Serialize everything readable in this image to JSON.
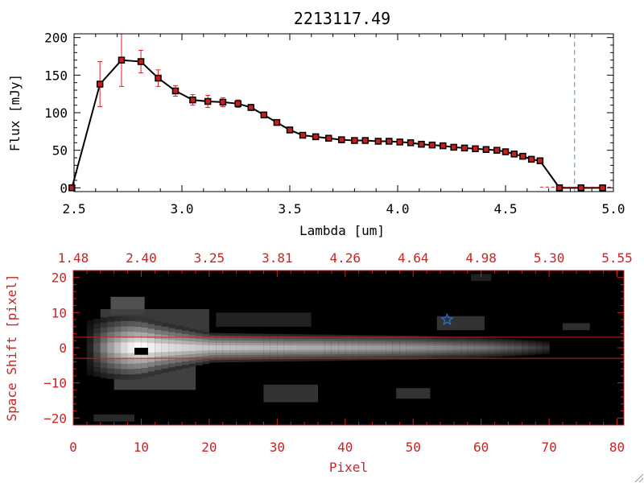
{
  "colors": {
    "background": "#ffffff",
    "axis_black": "#000000",
    "axis_red": "#cc2222",
    "errorbar_red": "#dd2222",
    "marker_fill": "#c81e1e",
    "line_black": "#000000",
    "dashed_blue": "#3a9ad9",
    "star_blue": "#2f7de0",
    "image_black": "#000000"
  },
  "chart_data": [
    {
      "type": "line",
      "title": "2213117.49",
      "xlabel": "Lambda [um]",
      "ylabel": "Flux [mJy]",
      "xlim": [
        2.5,
        5.0
      ],
      "ylim": [
        -5,
        205
      ],
      "xticks": [
        2.5,
        3.0,
        3.5,
        4.0,
        4.5,
        5.0
      ],
      "xtick_labels": [
        "2.5",
        "3.0",
        "3.5",
        "4.0",
        "4.5",
        "5.0"
      ],
      "yticks": [
        0,
        50,
        100,
        150,
        200
      ],
      "ytick_labels": [
        "0",
        "50",
        "100",
        "150",
        "200"
      ],
      "grid": false,
      "series": [
        {
          "x": [
            2.49,
            2.62,
            2.72,
            2.81,
            2.89,
            2.97,
            3.05,
            3.12,
            3.19,
            3.26,
            3.32,
            3.38,
            3.44,
            3.5,
            3.56,
            3.62,
            3.68,
            3.74,
            3.8,
            3.85,
            3.91,
            3.96,
            4.01,
            4.06,
            4.11,
            4.16,
            4.21,
            4.26,
            4.31,
            4.36,
            4.41,
            4.46,
            4.5,
            4.54,
            4.58,
            4.62,
            4.66,
            4.75,
            4.85,
            4.95
          ],
          "y": [
            0,
            138,
            170,
            168,
            146,
            129,
            117,
            115,
            114,
            112,
            107,
            97,
            87,
            77,
            70,
            68,
            66,
            64,
            63,
            63,
            62,
            62,
            61,
            60,
            58,
            57,
            56,
            54,
            53,
            52,
            51,
            50,
            48,
            45,
            42,
            38,
            36,
            0,
            0,
            0
          ],
          "yerr": [
            0,
            30,
            35,
            15,
            11,
            7,
            7,
            8,
            6,
            5,
            4,
            3,
            3,
            2,
            2,
            1,
            1,
            1,
            1,
            1,
            1,
            1,
            1,
            1,
            1,
            1,
            1,
            1,
            1,
            1,
            1,
            1,
            1,
            1,
            1,
            1,
            1,
            0,
            0,
            0
          ]
        }
      ],
      "annotations": [
        {
          "type": "vline",
          "x": 4.82,
          "style": "dashed",
          "color": "#3a9ad9"
        }
      ]
    },
    {
      "type": "heatmap",
      "xlabel": "Pixel",
      "ylabel": "Space Shift [pixel]",
      "xlim": [
        0,
        81
      ],
      "ylim": [
        -22,
        22
      ],
      "xticks": [
        0,
        10,
        20,
        30,
        40,
        50,
        60,
        70,
        80
      ],
      "xtick_labels": [
        "0",
        "10",
        "20",
        "30",
        "40",
        "50",
        "60",
        "70",
        "80"
      ],
      "yticks": [
        -20,
        -10,
        0,
        10,
        20
      ],
      "ytick_labels": [
        "−20",
        "−10",
        "0",
        "10",
        "20"
      ],
      "top_axis_ticks": [
        0,
        10,
        20,
        30,
        40,
        50,
        60,
        70,
        80
      ],
      "top_axis_labels": [
        "1.48",
        "2.40",
        "3.25",
        "3.81",
        "4.26",
        "4.64",
        "4.98",
        "5.30",
        "5.55"
      ],
      "extraction_aperture": [
        -3,
        3
      ],
      "star_marker": {
        "x": 55,
        "y": 8
      },
      "black_marker": {
        "x": 10,
        "y": -1
      },
      "trace": [
        {
          "x": 5,
          "brightness": 0.55
        },
        {
          "x": 8,
          "brightness": 0.9
        },
        {
          "x": 10,
          "brightness": 1.0
        },
        {
          "x": 13,
          "brightness": 0.88
        },
        {
          "x": 17,
          "brightness": 0.8
        },
        {
          "x": 22,
          "brightness": 0.74
        },
        {
          "x": 30,
          "brightness": 0.68
        },
        {
          "x": 40,
          "brightness": 0.62
        },
        {
          "x": 50,
          "brightness": 0.55
        },
        {
          "x": 60,
          "brightness": 0.42
        },
        {
          "x": 66,
          "brightness": 0.28
        },
        {
          "x": 70,
          "brightness": 0.12
        }
      ],
      "blobs": [
        {
          "x": 8,
          "y": 12,
          "w": 5,
          "h": 5,
          "v": 0.35
        },
        {
          "x": 12,
          "y": 7,
          "w": 16,
          "h": 8,
          "v": 0.25
        },
        {
          "x": 12,
          "y": -8,
          "w": 12,
          "h": 8,
          "v": 0.28
        },
        {
          "x": 28,
          "y": 8,
          "w": 14,
          "h": 4,
          "v": 0.15
        },
        {
          "x": 32,
          "y": -13,
          "w": 8,
          "h": 5,
          "v": 0.22
        },
        {
          "x": 50,
          "y": -13,
          "w": 5,
          "h": 3,
          "v": 0.22
        },
        {
          "x": 57,
          "y": 7,
          "w": 7,
          "h": 4,
          "v": 0.22
        },
        {
          "x": 74,
          "y": 6,
          "w": 4,
          "h": 2,
          "v": 0.2
        },
        {
          "x": 6,
          "y": -20,
          "w": 6,
          "h": 2,
          "v": 0.18
        },
        {
          "x": 60,
          "y": 20,
          "w": 3,
          "h": 2,
          "v": 0.14
        }
      ]
    }
  ]
}
